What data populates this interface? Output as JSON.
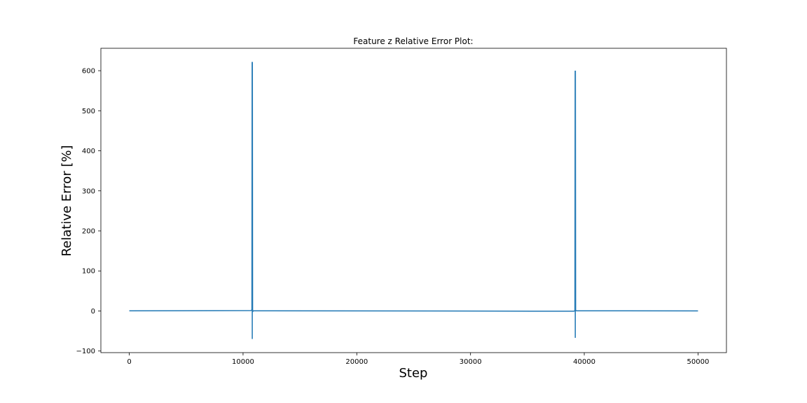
{
  "chart_data": {
    "type": "line",
    "title": "Feature z Relative Error Plot:",
    "xlabel": "Step",
    "ylabel": "Relative Error [%]",
    "xlim": [
      -2500,
      52500
    ],
    "ylim": [
      -104,
      656
    ],
    "x_ticks": [
      0,
      10000,
      20000,
      30000,
      40000,
      50000
    ],
    "x_tick_labels": [
      "0",
      "10000",
      "20000",
      "30000",
      "40000",
      "50000"
    ],
    "y_ticks": [
      -100,
      0,
      100,
      200,
      300,
      400,
      500,
      600
    ],
    "y_tick_labels": [
      "−100",
      "0",
      "100",
      "200",
      "300",
      "400",
      "500",
      "600"
    ],
    "grid": false,
    "series": [
      {
        "color": "#1f77b4",
        "x": [
          0,
          10700,
          10780,
          10800,
          10810,
          10820,
          10840,
          10900,
          39100,
          39180,
          39200,
          39210,
          39220,
          39240,
          39300,
          50000
        ],
        "y": [
          0.5,
          1,
          3,
          622,
          -70,
          622,
          -2,
          0.5,
          -0.5,
          1,
          600,
          -67,
          600,
          1,
          0.5,
          0.2
        ]
      }
    ]
  }
}
